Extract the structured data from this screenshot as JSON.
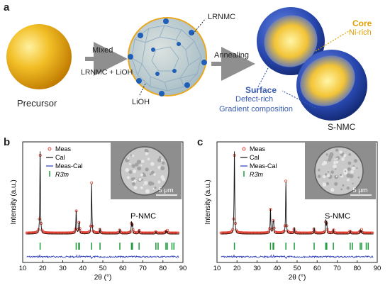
{
  "panel_a": {
    "letter": "a",
    "precursor_label": "Precursor",
    "arrow1_top": "Mixed",
    "arrow1_bottom": "LRNMC + LiOH",
    "lrnmc_label": "LRNMC",
    "lioh_label": "LiOH",
    "arrow2_label": "Annealing",
    "core_title": "Core",
    "core_sub": "Ni-rich",
    "surface_title": "Surface",
    "surface_line1": "Defect-rich",
    "surface_line2": "Gradient composition",
    "snmc_label": "S-NMC"
  },
  "panel_b": {
    "letter": "b",
    "sample_label": "P-NMC",
    "scale_label": "5 μm",
    "ylabel": "Intensity (a.u.)",
    "xlabel": "2θ (°)",
    "legend": [
      "Meas",
      "Cal",
      "Meas-Cal",
      "R3̄m"
    ],
    "xticks": [
      "10",
      "20",
      "30",
      "40",
      "50",
      "60",
      "70",
      "80",
      "90"
    ]
  },
  "panel_c": {
    "letter": "c",
    "sample_label": "S-NMC",
    "scale_label": "5 μm",
    "ylabel": "Intensity (a.u.)",
    "xlabel": "2θ (°)",
    "legend": [
      "Meas",
      "Cal",
      "Meas-Cal",
      "R3̄m"
    ],
    "xticks": [
      "10",
      "20",
      "30",
      "40",
      "50",
      "60",
      "70",
      "80",
      "90"
    ]
  },
  "chart_data": [
    {
      "type": "line",
      "title": "P-NMC",
      "xlabel": "2θ (°)",
      "ylabel": "Intensity (a.u.)",
      "xlim": [
        10,
        90
      ],
      "series_names": [
        "Meas",
        "Cal",
        "Meas-Cal",
        "R3̄m"
      ],
      "peaks": [
        {
          "x": 18.7,
          "y": 1.0
        },
        {
          "x": 36.7,
          "y": 0.28
        },
        {
          "x": 38.0,
          "y": 0.09
        },
        {
          "x": 38.3,
          "y": 0.12
        },
        {
          "x": 44.4,
          "y": 0.6
        },
        {
          "x": 48.6,
          "y": 0.07
        },
        {
          "x": 58.5,
          "y": 0.06
        },
        {
          "x": 64.3,
          "y": 0.14
        },
        {
          "x": 64.8,
          "y": 0.12
        },
        {
          "x": 68.1,
          "y": 0.05
        },
        {
          "x": 76.5,
          "y": 0.03
        },
        {
          "x": 81.5,
          "y": 0.04
        },
        {
          "x": 82.2,
          "y": 0.03
        }
      ],
      "bragg_positions": [
        18.7,
        36.7,
        38.0,
        38.3,
        44.4,
        48.6,
        58.5,
        64.3,
        64.8,
        68.1,
        76.5,
        77.6,
        81.5,
        82.2,
        84.5,
        85.5
      ]
    },
    {
      "type": "line",
      "title": "S-NMC",
      "xlabel": "2θ (°)",
      "ylabel": "Intensity (a.u.)",
      "xlim": [
        10,
        90
      ],
      "series_names": [
        "Meas",
        "Cal",
        "Meas-Cal",
        "R3̄m"
      ],
      "peaks": [
        {
          "x": 18.7,
          "y": 1.0
        },
        {
          "x": 36.7,
          "y": 0.3
        },
        {
          "x": 38.0,
          "y": 0.11
        },
        {
          "x": 38.3,
          "y": 0.13
        },
        {
          "x": 44.4,
          "y": 0.62
        },
        {
          "x": 48.6,
          "y": 0.08
        },
        {
          "x": 58.5,
          "y": 0.08
        },
        {
          "x": 64.3,
          "y": 0.16
        },
        {
          "x": 64.8,
          "y": 0.14
        },
        {
          "x": 68.1,
          "y": 0.06
        },
        {
          "x": 76.5,
          "y": 0.04
        },
        {
          "x": 81.5,
          "y": 0.05
        },
        {
          "x": 82.2,
          "y": 0.04
        }
      ],
      "bragg_positions": [
        18.7,
        36.7,
        38.0,
        38.3,
        44.4,
        48.6,
        58.5,
        64.3,
        64.8,
        68.1,
        76.5,
        77.6,
        81.5,
        82.2,
        84.5,
        85.5
      ]
    }
  ]
}
